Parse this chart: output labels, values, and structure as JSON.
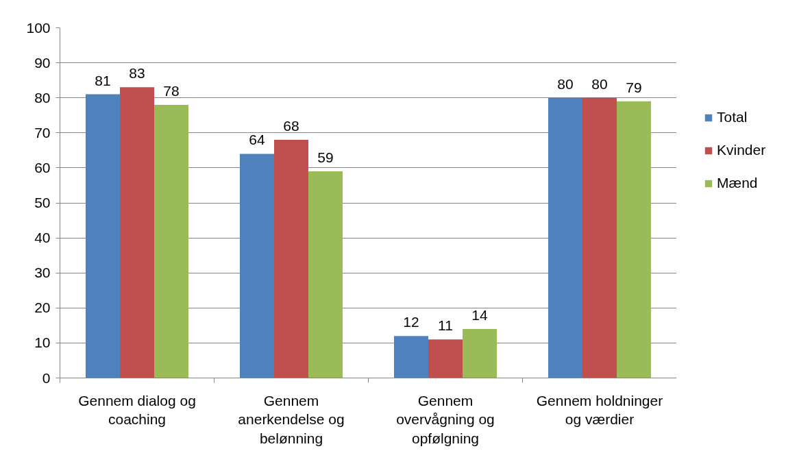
{
  "chart_data": {
    "type": "bar",
    "categories": [
      "Gennem dialog og coaching",
      "Gennem anerkendelse og belønning",
      "Gennem overvågning og opfølgning",
      "Gennem holdninger og værdier"
    ],
    "series": [
      {
        "name": "Total",
        "color": "#4f81bd",
        "values": [
          81,
          64,
          12,
          80
        ]
      },
      {
        "name": "Kvinder",
        "color": "#c0504d",
        "values": [
          83,
          68,
          11,
          80
        ]
      },
      {
        "name": "Mænd",
        "color": "#9bbb59",
        "values": [
          78,
          59,
          14,
          79
        ]
      }
    ],
    "ylim": [
      0,
      100
    ],
    "yticks": [
      0,
      10,
      20,
      30,
      40,
      50,
      60,
      70,
      80,
      90,
      100
    ],
    "grid": "y",
    "legend": "right",
    "data_labels": true
  }
}
